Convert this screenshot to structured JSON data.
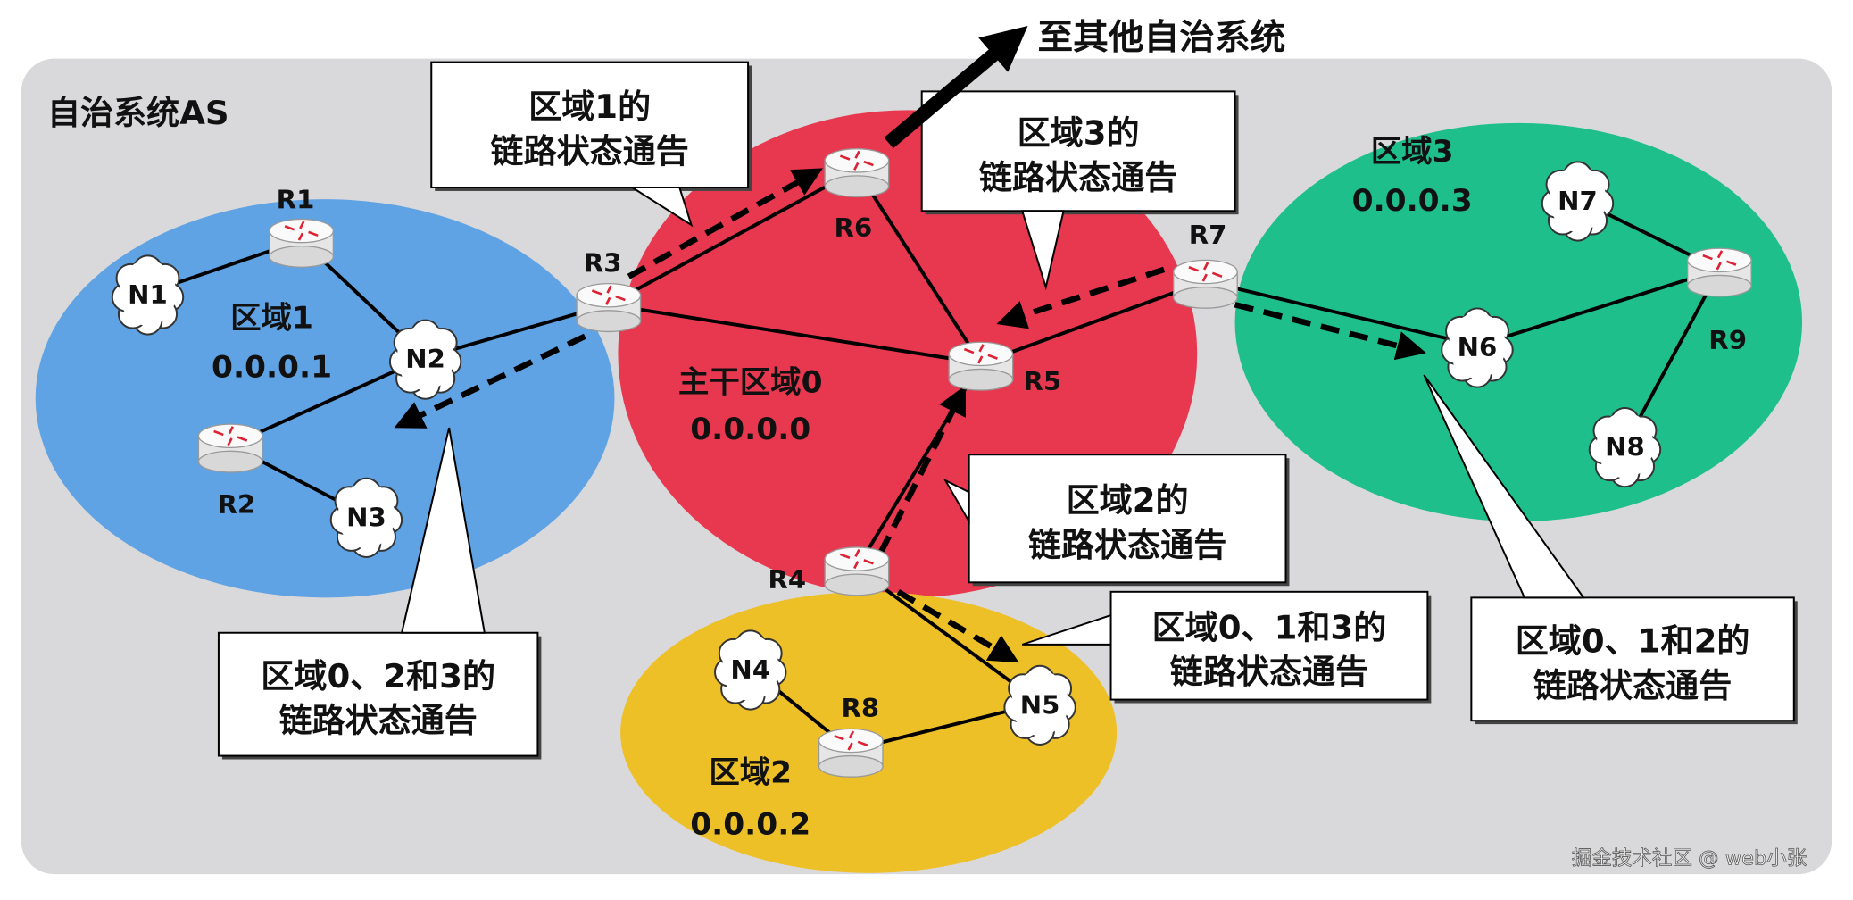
{
  "title": "自治系统AS",
  "external_label": "至其他自治系统",
  "watermark": "掘金技术社区 @ web小张",
  "colors": {
    "background": "#d9d8da",
    "area1": "#5fa3e4",
    "area0": "#e8384f",
    "area3": "#1fbf8c",
    "area2": "#eec027"
  },
  "areas": [
    {
      "name": "区域1",
      "id": "0.0.0.1",
      "color": "#5fa3e4"
    },
    {
      "name": "主干区域0",
      "id": "0.0.0.0",
      "color": "#e8384f"
    },
    {
      "name": "区域3",
      "id": "0.0.0.3",
      "color": "#1fbf8c"
    },
    {
      "name": "区域2",
      "id": "0.0.0.2",
      "color": "#eec027"
    }
  ],
  "routers": [
    "R1",
    "R2",
    "R3",
    "R4",
    "R5",
    "R6",
    "R7",
    "R8",
    "R9"
  ],
  "networks": [
    "N1",
    "N2",
    "N3",
    "N4",
    "N5",
    "N6",
    "N7",
    "N8"
  ],
  "links": [
    [
      "N1",
      "R1"
    ],
    [
      "R1",
      "N2"
    ],
    [
      "N2",
      "R3"
    ],
    [
      "N2",
      "R2"
    ],
    [
      "R2",
      "N3"
    ],
    [
      "R3",
      "R6"
    ],
    [
      "R3",
      "R5"
    ],
    [
      "R6",
      "R5"
    ],
    [
      "R5",
      "R7"
    ],
    [
      "R5",
      "R4"
    ],
    [
      "R7",
      "N6"
    ],
    [
      "N6",
      "R9"
    ],
    [
      "R9",
      "N7"
    ],
    [
      "R9",
      "N8"
    ],
    [
      "R4",
      "N5"
    ],
    [
      "N4",
      "R8"
    ],
    [
      "R8",
      "N5"
    ]
  ],
  "callouts": [
    {
      "line1": "区域1的",
      "line2": "链路状态通告"
    },
    {
      "line1": "区域3的",
      "line2": "链路状态通告"
    },
    {
      "line1": "区域2的",
      "line2": "链路状态通告"
    },
    {
      "line1": "区域0、1和3的",
      "line2": "链路状态通告"
    },
    {
      "line1": "区域0、1和2的",
      "line2": "链路状态通告"
    },
    {
      "line1": "区域0、2和3的",
      "line2": "链路状态通告"
    }
  ]
}
